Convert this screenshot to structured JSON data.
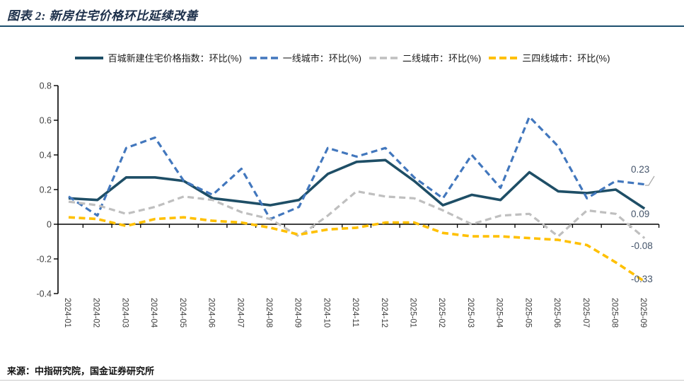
{
  "title": "图表 2: 新房住宅价格环比延续改善",
  "source": "来源：中指研究院，国金证券研究所",
  "colors": {
    "title_text": "#1c2f4a",
    "title_rule": "#1d4f6e",
    "axis": "#000000",
    "tick_text": "#404040",
    "end_label_text": "#44546a",
    "leader_line": "#a6a6a6"
  },
  "chart_data": {
    "type": "line",
    "title": "图表 2: 新房住宅价格环比延续改善",
    "categories": [
      "2024-01",
      "2024-02",
      "2024-03",
      "2024-04",
      "2024-05",
      "2024-06",
      "2024-07",
      "2024-08",
      "2024-09",
      "2024-10",
      "2024-11",
      "2024-12",
      "2025-01",
      "2025-02",
      "2025-03",
      "2025-04",
      "2025-05",
      "2025-06",
      "2025-07",
      "2025-08",
      "2025-09"
    ],
    "series": [
      {
        "name": "百城新建住宅价格指数：环比(%)",
        "color": "#1e4e66",
        "style": "solid",
        "width": 3.6,
        "values": [
          0.15,
          0.14,
          0.27,
          0.27,
          0.25,
          0.15,
          0.13,
          0.11,
          0.14,
          0.29,
          0.36,
          0.37,
          0.25,
          0.11,
          0.17,
          0.14,
          0.3,
          0.19,
          0.18,
          0.2,
          0.09
        ],
        "end_label": "0.09"
      },
      {
        "name": "一线城市：环比(%)",
        "color": "#4277bd",
        "style": "dashed",
        "width": 3.2,
        "values": [
          0.16,
          0.05,
          0.44,
          0.5,
          0.25,
          0.17,
          0.32,
          0.03,
          0.1,
          0.44,
          0.39,
          0.44,
          0.27,
          0.15,
          0.4,
          0.21,
          0.62,
          0.45,
          0.15,
          0.25,
          0.23
        ],
        "end_label": "0.23",
        "leader": true
      },
      {
        "name": "二线城市：环比(%)",
        "color": "#bfbfbf",
        "style": "dashed",
        "width": 3.2,
        "values": [
          0.13,
          0.11,
          0.06,
          0.1,
          0.16,
          0.14,
          0.07,
          0.03,
          -0.07,
          0.05,
          0.19,
          0.16,
          0.15,
          0.08,
          0.0,
          0.05,
          0.06,
          -0.07,
          0.08,
          0.06,
          -0.08
        ],
        "end_label": "-0.08"
      },
      {
        "name": "三四线城市：环比(%)",
        "color": "#ffc000",
        "style": "dashed",
        "width": 3.6,
        "values": [
          0.04,
          0.03,
          -0.01,
          0.03,
          0.04,
          0.02,
          0.01,
          -0.02,
          -0.06,
          -0.03,
          -0.02,
          0.01,
          0.01,
          -0.05,
          -0.07,
          -0.07,
          -0.08,
          -0.09,
          -0.12,
          -0.22,
          -0.33
        ],
        "end_label": "-0.33"
      }
    ],
    "ytick_labels": [
      "0.8",
      "0.6",
      "0.4",
      "0.2",
      "0",
      "-0.2",
      "-0.4"
    ],
    "yticks": [
      0.8,
      0.6,
      0.4,
      0.2,
      0,
      -0.2,
      -0.4
    ],
    "ylim": [
      -0.4,
      0.8
    ],
    "grid": false,
    "legend_position": "top"
  }
}
